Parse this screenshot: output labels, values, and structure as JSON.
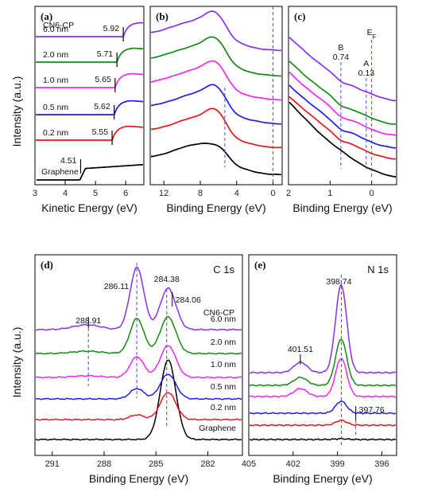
{
  "colors": {
    "graphene": "#000000",
    "0.2 nm": "#e8161b",
    "0.5 nm": "#1d1df2",
    "1.0 nm": "#f226f2",
    "2.0 nm": "#138a13",
    "6.0 nm": "#8a2ff0",
    "guide": "#4a4ae0"
  },
  "chart_data": [
    {
      "id": "a",
      "type": "line",
      "panel_label": "(a)",
      "xlabel": "Kinetic Energy (eV)",
      "ylabel": "Intensity (a.u.)",
      "xlim": [
        3,
        6.6
      ],
      "xticks": [
        "3",
        "4",
        "5",
        "6"
      ],
      "xtick_values": [
        3,
        4,
        5,
        6
      ],
      "series_order": [
        "Graphene",
        "0.2 nm",
        "0.5 nm",
        "1.0 nm",
        "2.0 nm",
        "6.0 nm"
      ],
      "top_label": "CN6-CP",
      "series": [
        {
          "name": "Graphene",
          "cutoff": 4.51,
          "cutoff_label": "4.51"
        },
        {
          "name": "0.2 nm",
          "cutoff": 5.55,
          "cutoff_label": "5.55"
        },
        {
          "name": "0.5 nm",
          "cutoff": 5.62,
          "cutoff_label": "5.62"
        },
        {
          "name": "1.0 nm",
          "cutoff": 5.65,
          "cutoff_label": "5.65"
        },
        {
          "name": "2.0 nm",
          "cutoff": 5.71,
          "cutoff_label": "5.71"
        },
        {
          "name": "6.0 nm",
          "cutoff": 5.92,
          "cutoff_label": "5.92"
        }
      ]
    },
    {
      "id": "b",
      "type": "line",
      "panel_label": "(b)",
      "xlabel": "Binding Energy (eV)",
      "xlim": [
        13.5,
        -1
      ],
      "xticks": [
        "12",
        "8",
        "4",
        "0"
      ],
      "xtick_values": [
        12,
        8,
        4,
        0
      ],
      "guide_lines": [
        5.3,
        0
      ]
    },
    {
      "id": "c",
      "type": "line",
      "panel_label": "(c)",
      "xlabel": "Binding Energy (eV)",
      "xlim": [
        2,
        -0.6
      ],
      "xticks": [
        "2",
        "1",
        "0"
      ],
      "xtick_values": [
        2,
        1,
        0
      ],
      "annotations": [
        {
          "text": "B",
          "value": "0.74",
          "x": 0.74
        },
        {
          "text": "A",
          "value": "0.13",
          "x": 0.13
        },
        {
          "text": "E",
          "sub": "F",
          "x": 0
        }
      ]
    },
    {
      "id": "d",
      "type": "line",
      "panel_label": "(d)",
      "core_level": "C 1s",
      "xlabel": "Binding Energy (eV)",
      "ylabel": "Intensity (a.u.)",
      "xlim": [
        292,
        280
      ],
      "xticks": [
        "291",
        "288",
        "285",
        "282"
      ],
      "xtick_values": [
        291,
        288,
        285,
        282
      ],
      "series_order": [
        "Graphene",
        "0.2 nm",
        "0.5 nm",
        "1.0 nm",
        "2.0 nm",
        "6.0 nm"
      ],
      "series_labels": [
        "Graphene",
        "0.2 nm",
        "0.5 nm",
        "1.0 nm",
        "2.0 nm",
        "6.0 nm"
      ],
      "top_label": "CN6-CP",
      "peaks": [
        {
          "x": 286.11,
          "label": "286.11"
        },
        {
          "x": 284.38,
          "label": "284.38"
        },
        {
          "x": 284.06,
          "label": "284.06"
        },
        {
          "x": 288.91,
          "label": "288.91"
        }
      ]
    },
    {
      "id": "e",
      "type": "line",
      "panel_label": "(e)",
      "core_level": "N 1s",
      "xlabel": "Binding Energy (eV)",
      "xlim": [
        405,
        395
      ],
      "xticks": [
        "405",
        "402",
        "399",
        "396"
      ],
      "xtick_values": [
        405,
        402,
        399,
        396
      ],
      "peaks": [
        {
          "x": 398.74,
          "label": "398.74"
        },
        {
          "x": 401.51,
          "label": "401.51"
        },
        {
          "x": 397.76,
          "label": "397.76"
        }
      ]
    }
  ]
}
